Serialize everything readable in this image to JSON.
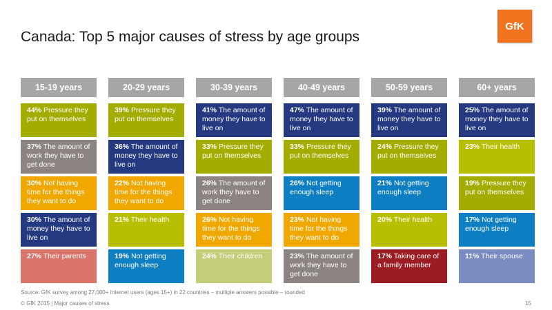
{
  "title": "Canada: Top 5 major causes of stress by age groups",
  "logo": "GfK",
  "colors": {
    "olive": "#a2ad00",
    "navy": "#24397f",
    "taupe": "#8c8480",
    "orange": "#f0a800",
    "blue": "#0f7fc4",
    "salmon": "#d9756a",
    "light_olive": "#c5cd78",
    "yellow_olive": "#b8be00",
    "dark_red": "#9b1c22",
    "lavender": "#7b8cc2"
  },
  "columns": [
    {
      "header": "15-19 years",
      "items": [
        {
          "pct": "44%",
          "text": "Pressure they put on themselves",
          "color": "#a2ad00"
        },
        {
          "pct": "37%",
          "text": "The amount of work they have to get done",
          "color": "#8c8480"
        },
        {
          "pct": "30%",
          "text": "Not having time for the things they want to do",
          "color": "#f0a800"
        },
        {
          "pct": "30%",
          "text": "The amount of money they have to live on",
          "color": "#24397f"
        },
        {
          "pct": "27%",
          "text": "Their parents",
          "color": "#d9756a"
        }
      ]
    },
    {
      "header": "20-29 years",
      "items": [
        {
          "pct": "39%",
          "text": "Pressure they put on themselves",
          "color": "#a2ad00"
        },
        {
          "pct": "36%",
          "text": "The amount of money they have to live on",
          "color": "#24397f"
        },
        {
          "pct": "22%",
          "text": "Not having time for the things they want to do",
          "color": "#f0a800"
        },
        {
          "pct": "21%",
          "text": "Their health",
          "color": "#b8be00"
        },
        {
          "pct": "19%",
          "text": "Not getting enough sleep",
          "color": "#0f7fc4"
        }
      ]
    },
    {
      "header": "30-39 years",
      "items": [
        {
          "pct": "41%",
          "text": "The amount of money they have to live on",
          "color": "#24397f"
        },
        {
          "pct": "33%",
          "text": "Pressure they put on themselves",
          "color": "#a2ad00"
        },
        {
          "pct": "26%",
          "text": "The amount of work they have to get done",
          "color": "#8c8480"
        },
        {
          "pct": "26%",
          "text": "Not having time for the things they want to do",
          "color": "#f0a800"
        },
        {
          "pct": "24%",
          "text": "Their children",
          "color": "#c5cd78"
        }
      ]
    },
    {
      "header": "40-49 years",
      "items": [
        {
          "pct": "47%",
          "text": "The amount of money they have to live on",
          "color": "#24397f"
        },
        {
          "pct": "33%",
          "text": "Pressure they put on themselves",
          "color": "#a2ad00"
        },
        {
          "pct": "26%",
          "text": "Not getting enough sleep",
          "color": "#0f7fc4"
        },
        {
          "pct": "23%",
          "text": "Not having time for the things they want to do",
          "color": "#f0a800"
        },
        {
          "pct": "23%",
          "text": "The amount of work they have to get done",
          "color": "#8c8480"
        }
      ]
    },
    {
      "header": "50-59 years",
      "items": [
        {
          "pct": "39%",
          "text": "The amount of money they have to live on",
          "color": "#24397f"
        },
        {
          "pct": "24%",
          "text": "Pressure they put on themselves",
          "color": "#a2ad00"
        },
        {
          "pct": "21%",
          "text": "Not getting enough sleep",
          "color": "#0f7fc4"
        },
        {
          "pct": "20%",
          "text": "Their health",
          "color": "#b8be00"
        },
        {
          "pct": "17%",
          "text": "Taking care of a family member",
          "color": "#9b1c22"
        }
      ]
    },
    {
      "header": "60+ years",
      "items": [
        {
          "pct": "25%",
          "text": "The amount of money they have to live on",
          "color": "#24397f"
        },
        {
          "pct": "23%",
          "text": "Their health",
          "color": "#b8be00"
        },
        {
          "pct": "19%",
          "text": "Pressure they put on themselves",
          "color": "#a2ad00"
        },
        {
          "pct": "17%",
          "text": "Not getting enough sleep",
          "color": "#0f7fc4"
        },
        {
          "pct": "11%",
          "text": "Their spouse",
          "color": "#7b8cc2"
        }
      ]
    }
  ],
  "source": "Source: GfK survey among 27,000+ Internet users (ages 15+) in 22 countries – multiple answers possible – rounded",
  "footer": "© GfK 2015 | Major causes of stress",
  "page_number": "15"
}
